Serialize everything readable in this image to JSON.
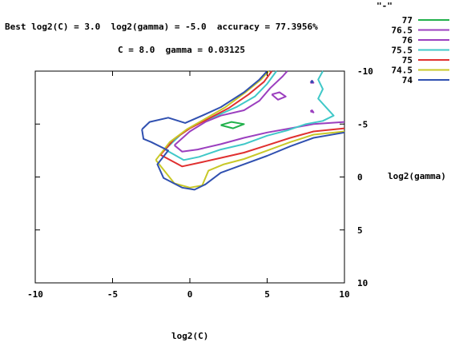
{
  "chart_data": {
    "type": "contour",
    "title": "Best log2(C) = 3.0  log2(gamma) = -5.0  accuracy = 77.3956%",
    "subtitle": "C = 8.0  gamma = 0.03125",
    "xlabel": "log2(C)",
    "ylabel": "log2(gamma)",
    "xlim": [
      -10,
      10
    ],
    "ylim": [
      -10,
      10
    ],
    "y_reversed": true,
    "x_ticks": [
      "-10",
      "-5",
      "0",
      "5",
      "10"
    ],
    "y_ticks": [
      "-10",
      "-5",
      "0",
      "5",
      "10"
    ],
    "grid": false,
    "legend_title": "\"-\"",
    "legend_position": "top-right",
    "series": [
      {
        "name": "77",
        "color": "#22b14c",
        "paths": [
          [
            [
              2.0,
              -4.9
            ],
            [
              2.7,
              -5.2
            ],
            [
              3.5,
              -5.0
            ],
            [
              2.8,
              -4.6
            ],
            [
              2.0,
              -4.9
            ]
          ]
        ]
      },
      {
        "name": "76.5",
        "color": "#9b3fbf",
        "paths": [
          [
            [
              5.3,
              -7.8
            ],
            [
              5.8,
              -8.0
            ],
            [
              6.2,
              -7.6
            ],
            [
              5.7,
              -7.3
            ],
            [
              5.3,
              -7.8
            ]
          ],
          [
            [
              7.8,
              -8.9
            ],
            [
              7.9,
              -9.1
            ],
            [
              8.0,
              -8.9
            ],
            [
              7.8,
              -8.9
            ]
          ],
          [
            [
              7.8,
              -6.2
            ],
            [
              7.9,
              -6.3
            ],
            [
              8.0,
              -6.1
            ],
            [
              7.8,
              -6.2
            ]
          ]
        ]
      },
      {
        "name": "76",
        "color": "#9b3fbf",
        "paths": [
          [
            [
              -1.0,
              -3.0
            ],
            [
              0.0,
              -4.3
            ],
            [
              1.0,
              -5.2
            ],
            [
              2.0,
              -5.8
            ],
            [
              3.5,
              -6.3
            ],
            [
              4.5,
              -7.2
            ],
            [
              5.2,
              -8.4
            ],
            [
              6.0,
              -9.5
            ],
            [
              6.3,
              -10.0
            ]
          ],
          [
            [
              10.0,
              -5.2
            ],
            [
              8.0,
              -5.0
            ],
            [
              6.5,
              -4.6
            ],
            [
              5.0,
              -4.2
            ],
            [
              3.5,
              -3.7
            ],
            [
              2.0,
              -3.1
            ],
            [
              0.5,
              -2.6
            ],
            [
              -0.5,
              -2.4
            ],
            [
              -1.0,
              -3.0
            ]
          ]
        ]
      },
      {
        "name": "75.5",
        "color": "#40c8c8",
        "paths": [
          [
            [
              -1.6,
              -2.6
            ],
            [
              -0.6,
              -4.0
            ],
            [
              0.4,
              -5.0
            ],
            [
              1.6,
              -5.7
            ],
            [
              3.0,
              -6.6
            ],
            [
              4.2,
              -7.6
            ],
            [
              5.0,
              -8.8
            ],
            [
              5.6,
              -10.0
            ]
          ],
          [
            [
              8.6,
              -10.0
            ],
            [
              8.3,
              -9.2
            ],
            [
              8.6,
              -8.3
            ],
            [
              8.3,
              -7.4
            ],
            [
              8.8,
              -6.6
            ],
            [
              9.3,
              -5.8
            ],
            [
              8.6,
              -5.3
            ],
            [
              7.5,
              -5.0
            ],
            [
              6.3,
              -4.4
            ],
            [
              5.0,
              -3.9
            ],
            [
              3.5,
              -3.1
            ],
            [
              2.0,
              -2.6
            ],
            [
              0.6,
              -1.9
            ],
            [
              -0.4,
              -1.6
            ],
            [
              -1.6,
              -2.6
            ]
          ]
        ]
      },
      {
        "name": "75",
        "color": "#e03030",
        "paths": [
          [
            [
              -1.9,
              -2.1
            ],
            [
              -1.0,
              -3.6
            ],
            [
              0.0,
              -4.6
            ],
            [
              1.2,
              -5.5
            ],
            [
              2.5,
              -6.5
            ],
            [
              3.8,
              -7.8
            ],
            [
              4.8,
              -9.0
            ],
            [
              5.3,
              -10.0
            ]
          ],
          [
            [
              10.0,
              -4.6
            ],
            [
              8.0,
              -4.3
            ],
            [
              6.5,
              -3.7
            ],
            [
              5.0,
              -3.0
            ],
            [
              3.5,
              -2.3
            ],
            [
              2.0,
              -1.8
            ],
            [
              0.8,
              -1.4
            ],
            [
              -0.5,
              -1.0
            ],
            [
              -1.9,
              -2.1
            ]
          ]
        ]
      },
      {
        "name": "74.5",
        "color": "#c8c828",
        "paths": [
          [
            [
              -2.2,
              -1.6
            ],
            [
              -1.3,
              -3.3
            ],
            [
              -0.2,
              -4.5
            ],
            [
              1.0,
              -5.5
            ],
            [
              2.3,
              -6.6
            ],
            [
              3.6,
              -8.0
            ],
            [
              4.6,
              -9.2
            ],
            [
              5.1,
              -10.0
            ]
          ],
          [
            [
              10.0,
              -4.3
            ],
            [
              8.0,
              -4.0
            ],
            [
              6.5,
              -3.3
            ],
            [
              5.0,
              -2.5
            ],
            [
              3.5,
              -1.7
            ],
            [
              2.2,
              -1.2
            ],
            [
              1.2,
              -0.6
            ],
            [
              0.8,
              0.8
            ],
            [
              0.0,
              1.0
            ],
            [
              -1.0,
              0.6
            ],
            [
              -2.2,
              -1.6
            ]
          ]
        ]
      },
      {
        "name": "74",
        "color": "#3050b0",
        "paths": [
          [
            [
              -3.1,
              -4.5
            ],
            [
              -2.6,
              -5.2
            ],
            [
              -1.4,
              -5.6
            ],
            [
              -0.3,
              -5.1
            ],
            [
              0.8,
              -5.8
            ],
            [
              2.0,
              -6.6
            ],
            [
              3.5,
              -8.0
            ],
            [
              4.5,
              -9.2
            ],
            [
              5.0,
              -10.0
            ]
          ],
          [
            [
              10.0,
              -4.2
            ],
            [
              8.0,
              -3.7
            ],
            [
              6.5,
              -2.9
            ],
            [
              5.0,
              -2.0
            ],
            [
              3.5,
              -1.2
            ],
            [
              2.0,
              -0.4
            ],
            [
              1.0,
              0.7
            ],
            [
              0.3,
              1.2
            ],
            [
              -0.5,
              1.0
            ],
            [
              -1.7,
              0.1
            ],
            [
              -2.1,
              -1.2
            ],
            [
              -1.4,
              -2.5
            ],
            [
              -2.5,
              -3.3
            ],
            [
              -3.0,
              -3.6
            ],
            [
              -3.1,
              -4.5
            ]
          ]
        ]
      }
    ],
    "markers": [
      {
        "name": "76.5",
        "color": "#3050b0",
        "x": 7.9,
        "y": -9.0
      }
    ]
  }
}
